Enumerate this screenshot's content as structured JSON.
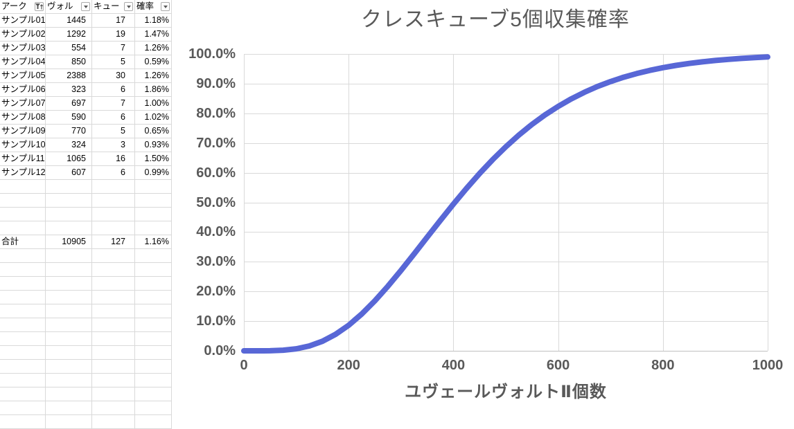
{
  "table": {
    "headers": [
      {
        "label": "アーク",
        "icon": "sort-asc-filter-icon"
      },
      {
        "label": "ヴォル",
        "icon": "dropdown-icon"
      },
      {
        "label": "キュー",
        "icon": "dropdown-icon"
      },
      {
        "label": "確率",
        "icon": "dropdown-icon"
      }
    ],
    "rows": [
      [
        "サンプル01",
        "1445",
        "17",
        "1.18%"
      ],
      [
        "サンプル02",
        "1292",
        "19",
        "1.47%"
      ],
      [
        "サンプル03",
        "554",
        "7",
        "1.26%"
      ],
      [
        "サンプル04",
        "850",
        "5",
        "0.59%"
      ],
      [
        "サンプル05",
        "2388",
        "30",
        "1.26%"
      ],
      [
        "サンプル06",
        "323",
        "6",
        "1.86%"
      ],
      [
        "サンプル07",
        "697",
        "7",
        "1.00%"
      ],
      [
        "サンプル08",
        "590",
        "6",
        "1.02%"
      ],
      [
        "サンプル09",
        "770",
        "5",
        "0.65%"
      ],
      [
        "サンプル10",
        "324",
        "3",
        "0.93%"
      ],
      [
        "サンプル11",
        "1065",
        "16",
        "1.50%"
      ],
      [
        "サンプル12",
        "607",
        "6",
        "0.99%"
      ]
    ],
    "empty_rows_between": 4,
    "total_row": [
      "合計",
      "10905",
      "127",
      "1.16%"
    ],
    "filler_rows_after": 13
  },
  "chart_data": {
    "type": "line",
    "title": "クレスキューブ5個収集確率",
    "xlabel": "ユヴェールヴォルトⅡ個数",
    "ylabel": "",
    "x_ticks": [
      "0",
      "200",
      "400",
      "600",
      "800",
      "1000"
    ],
    "y_ticks": [
      "100.0%",
      "90.0%",
      "80.0%",
      "70.0%",
      "60.0%",
      "50.0%",
      "40.0%",
      "30.0%",
      "20.0%",
      "10.0%",
      "0.0%"
    ],
    "xlim": [
      0,
      1000
    ],
    "ylim_percent": [
      0,
      100
    ],
    "grid": true,
    "legend": "none",
    "series": [
      {
        "name": "クレスキューブ5個収集確率",
        "x": [
          0,
          25,
          50,
          75,
          100,
          125,
          150,
          175,
          200,
          225,
          250,
          275,
          300,
          325,
          350,
          375,
          400,
          425,
          450,
          475,
          500,
          525,
          550,
          575,
          600,
          625,
          650,
          675,
          700,
          725,
          750,
          775,
          800,
          825,
          850,
          875,
          900,
          925,
          950,
          975,
          1000
        ],
        "y_percent": [
          0,
          0,
          0.03,
          0.2,
          0.67,
          1.63,
          3.22,
          5.54,
          8.61,
          12.4,
          16.82,
          21.76,
          27.08,
          32.63,
          38.29,
          43.92,
          49.42,
          54.71,
          59.73,
          64.4,
          68.72,
          72.67,
          76.26,
          79.48,
          82.33,
          84.87,
          87.08,
          89.05,
          90.7,
          92.16,
          93.4,
          94.47,
          95.38,
          96.15,
          96.8,
          97.35,
          97.81,
          98.19,
          98.51,
          98.78,
          99.0
        ]
      }
    ]
  },
  "colors": {
    "line": "#5867D6",
    "gridline": "#D9D9D9",
    "axis_line": "#BFBFBF",
    "chart_text": "#595959",
    "table_text": "#000000",
    "filter_icon": "#595959"
  }
}
